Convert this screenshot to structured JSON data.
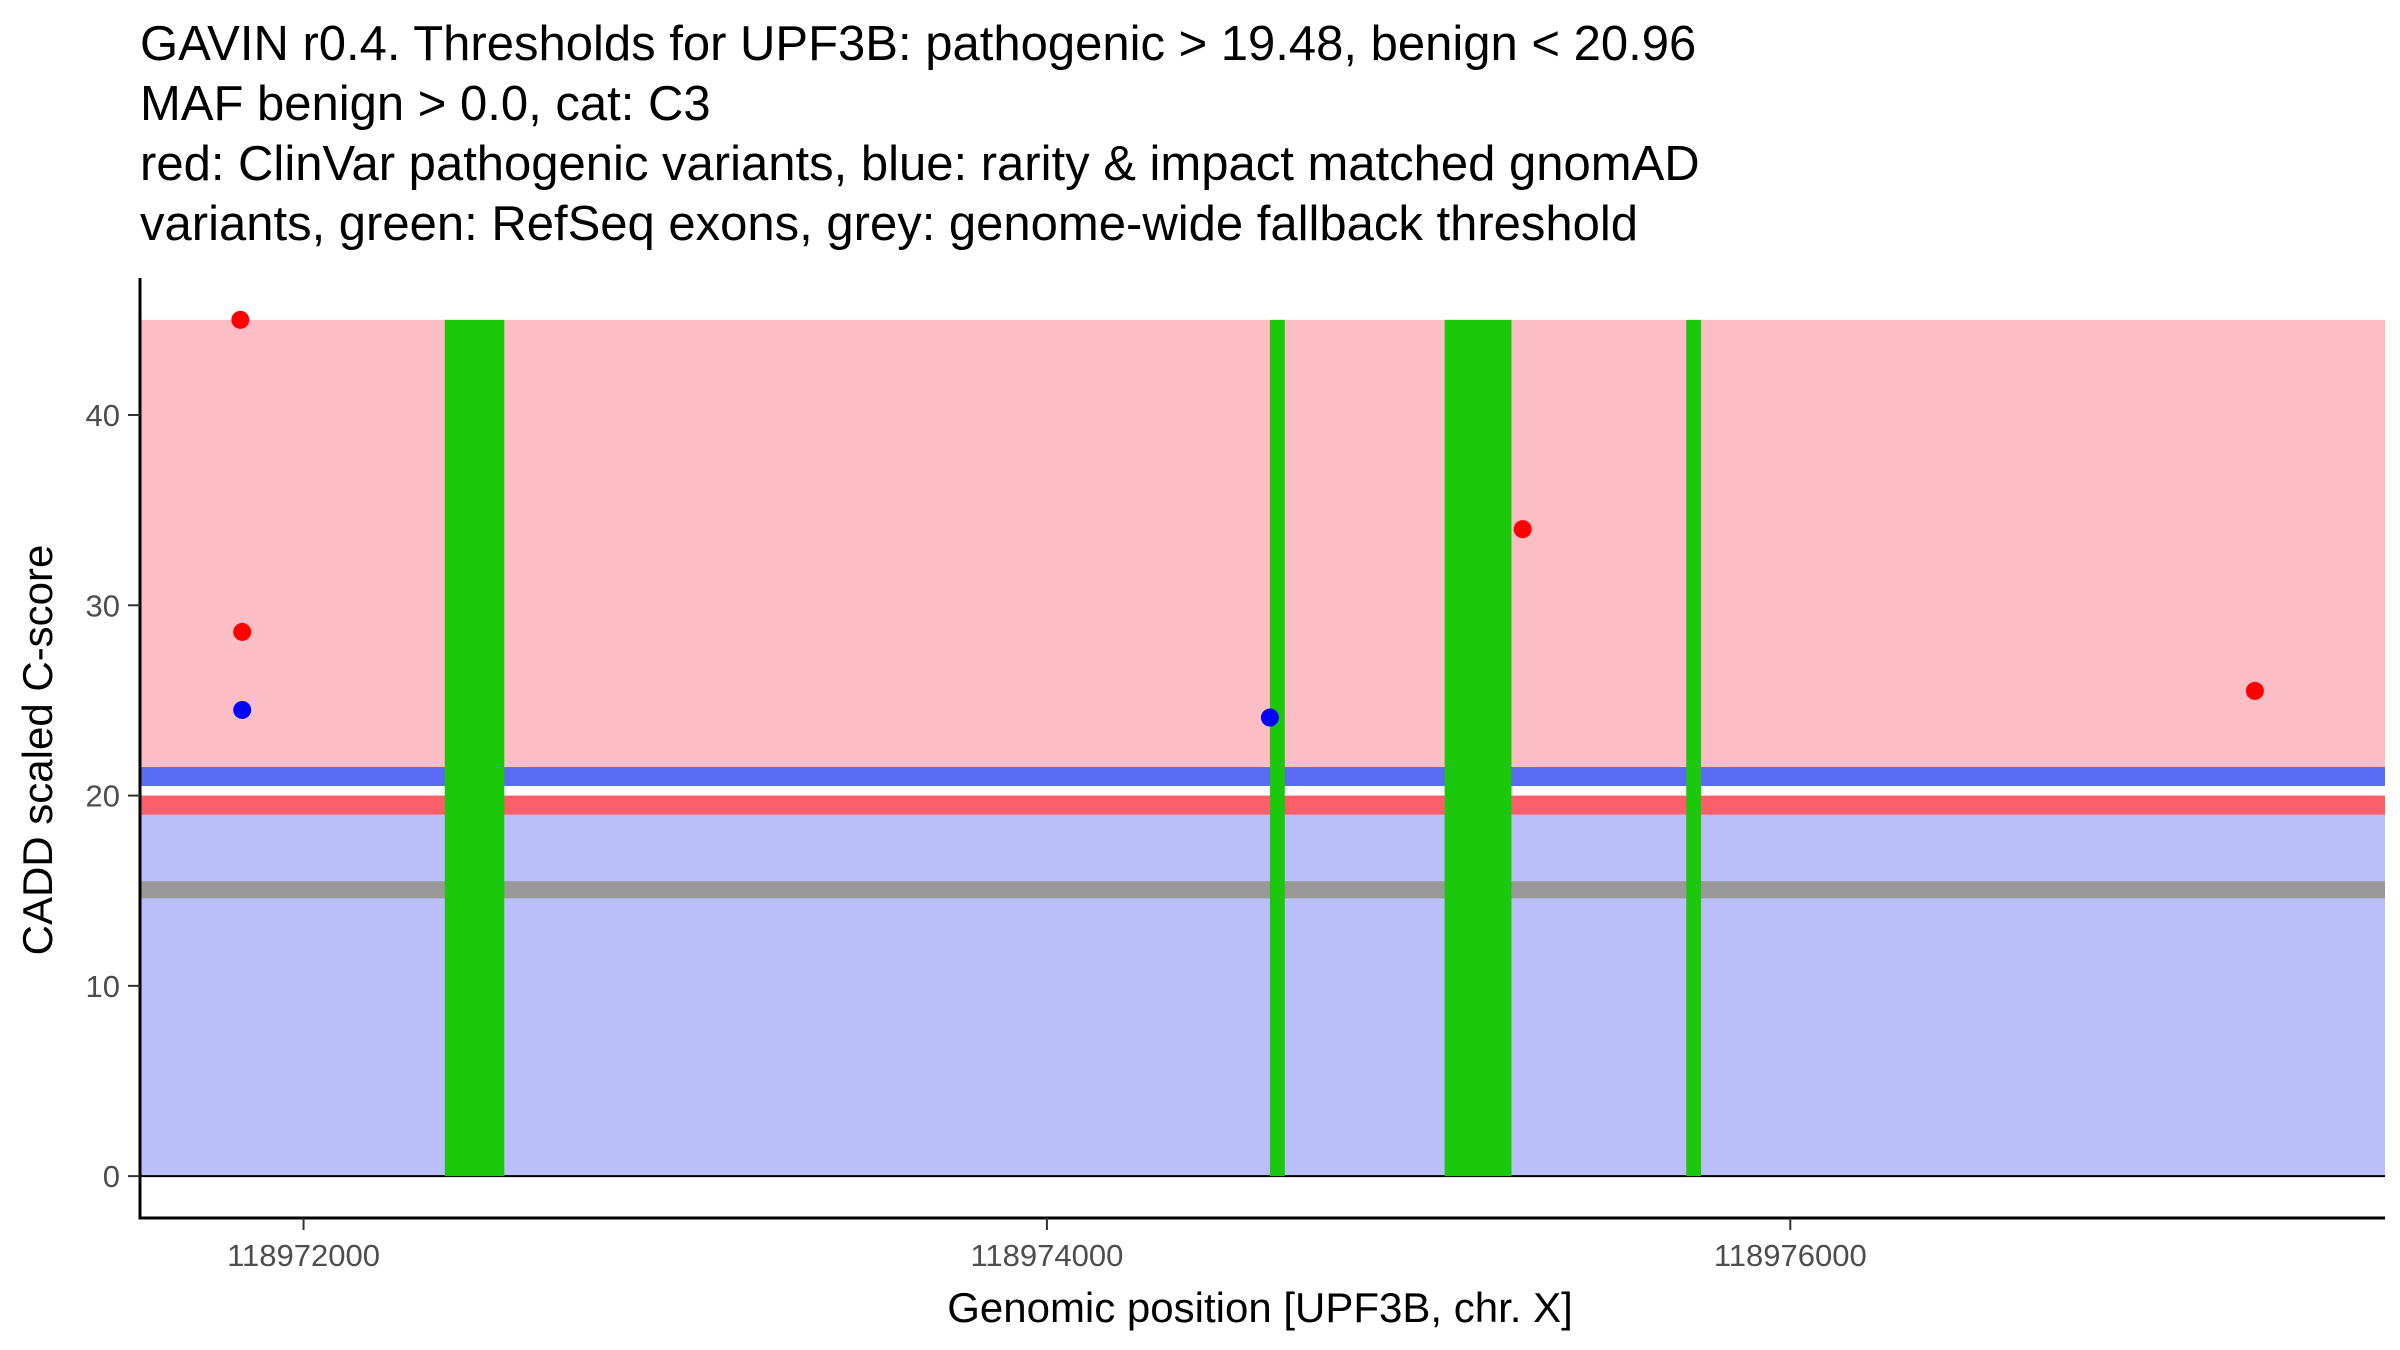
{
  "chart_data": {
    "type": "scatter",
    "title_lines": [
      "GAVIN r0.4. Thresholds for UPF3B: pathogenic > 19.48, benign < 20.96",
      "MAF benign > 0.0, cat: C3",
      "red: ClinVar pathogenic variants, blue: rarity & impact matched gnomAD",
      "variants, green: RefSeq exons, grey: genome-wide fallback threshold"
    ],
    "xlabel": "Genomic position [UPF3B, chr. X]",
    "ylabel": "CADD scaled C-score",
    "xlim": [
      118971560,
      118977600
    ],
    "ylim": [
      -2.2,
      47.2
    ],
    "x_ticks": [
      {
        "value": 118972000,
        "label": "118972000"
      },
      {
        "value": 118974000,
        "label": "118974000"
      },
      {
        "value": 118976000,
        "label": "118976000"
      }
    ],
    "y_ticks": [
      {
        "value": 0,
        "label": "0"
      },
      {
        "value": 10,
        "label": "10"
      },
      {
        "value": 20,
        "label": "20"
      },
      {
        "value": 30,
        "label": "30"
      },
      {
        "value": 40,
        "label": "40"
      }
    ],
    "regions": [
      {
        "name": "benign-region",
        "y0": 0,
        "y1": 19.48,
        "color": "#babffa"
      },
      {
        "name": "pathogenic-region",
        "y0": 20.96,
        "y1": 45,
        "color": "#fcbec4"
      }
    ],
    "threshold_bands": [
      {
        "name": "fallback-threshold",
        "y0": 14.6,
        "y1": 15.5,
        "color": "#999999"
      },
      {
        "name": "pathogenic-threshold",
        "y0": 19.0,
        "y1": 20.0,
        "color": "#fc5f6c"
      },
      {
        "name": "benign-threshold",
        "y0": 20.5,
        "y1": 21.5,
        "color": "#5a6cf4"
      }
    ],
    "exons": [
      {
        "x0": 118972380,
        "x1": 118972540
      },
      {
        "x0": 118974600,
        "x1": 118974640
      },
      {
        "x0": 118975070,
        "x1": 118975250
      },
      {
        "x0": 118975720,
        "x1": 118975760
      }
    ],
    "exon_color": "#1cc80c",
    "exon_y_top": 45,
    "series": [
      {
        "name": "ClinVar pathogenic",
        "color": "#ff0000",
        "points": [
          {
            "x": 118971830,
            "y": 45.0
          },
          {
            "x": 118971835,
            "y": 28.6
          },
          {
            "x": 118975280,
            "y": 34.0
          },
          {
            "x": 118977250,
            "y": 25.5
          }
        ]
      },
      {
        "name": "gnomAD matched",
        "color": "#0000ff",
        "points": [
          {
            "x": 118971835,
            "y": 24.5
          },
          {
            "x": 118974600,
            "y": 24.1
          }
        ]
      }
    ]
  }
}
